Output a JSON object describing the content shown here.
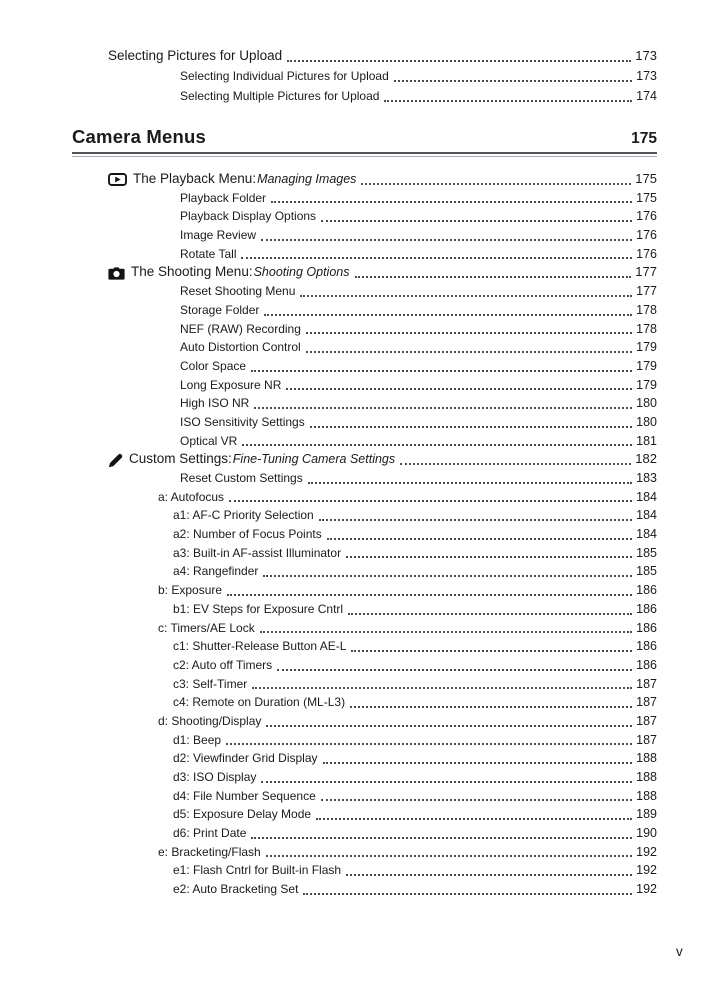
{
  "page": {
    "footer_page_label": "v"
  },
  "pre_section": {
    "entries": [
      {
        "level": "l1",
        "label": "Selecting Pictures for Upload",
        "page": "173"
      },
      {
        "level": "l2",
        "label": "Selecting Individual Pictures for Upload",
        "page": "173"
      },
      {
        "level": "l2",
        "label": "Selecting Multiple Pictures for Upload",
        "page": "174"
      }
    ]
  },
  "chapter": {
    "title": "Camera Menus",
    "page": "175"
  },
  "toc": {
    "entries": [
      {
        "level": "l1",
        "icon": "playback-icon",
        "label": "The Playback Menu: ",
        "subtitle": "Managing Images",
        "page": "175"
      },
      {
        "level": "l2",
        "label": "Playback Folder",
        "page": "175"
      },
      {
        "level": "l2",
        "label": "Playback Display Options",
        "page": "176"
      },
      {
        "level": "l2",
        "label": "Image Review",
        "page": "176"
      },
      {
        "level": "l2",
        "label": "Rotate Tall",
        "page": "176"
      },
      {
        "level": "l1",
        "icon": "camera-icon",
        "label": "The Shooting Menu: ",
        "subtitle": "Shooting Options",
        "page": "177"
      },
      {
        "level": "l2",
        "label": "Reset Shooting Menu",
        "page": "177"
      },
      {
        "level": "l2",
        "label": "Storage Folder",
        "page": "178"
      },
      {
        "level": "l2",
        "label": "NEF (RAW) Recording",
        "page": "178"
      },
      {
        "level": "l2",
        "label": "Auto Distortion Control",
        "page": "179"
      },
      {
        "level": "l2",
        "label": "Color Space",
        "page": "179"
      },
      {
        "level": "l2",
        "label": "Long Exposure NR",
        "page": "179"
      },
      {
        "level": "l2",
        "label": "High ISO NR",
        "page": "180"
      },
      {
        "level": "l2",
        "label": "ISO Sensitivity Settings",
        "page": "180"
      },
      {
        "level": "l2",
        "label": "Optical VR",
        "page": "181"
      },
      {
        "level": "l1",
        "icon": "pencil-icon",
        "label": "Custom Settings: ",
        "subtitle": "Fine-Tuning Camera Settings",
        "page": "182"
      },
      {
        "level": "l2",
        "label": "Reset Custom Settings",
        "page": "183"
      },
      {
        "level": "group",
        "label": "a: Autofocus",
        "page": "184"
      },
      {
        "level": "sub",
        "label": "a1: AF-C Priority Selection",
        "page": "184"
      },
      {
        "level": "sub",
        "label": "a2: Number of Focus Points",
        "page": "184"
      },
      {
        "level": "sub",
        "label": "a3: Built-in AF-assist Illuminator",
        "page": "185"
      },
      {
        "level": "sub",
        "label": "a4: Rangefinder",
        "page": "185"
      },
      {
        "level": "group",
        "label": "b: Exposure",
        "page": "186"
      },
      {
        "level": "sub",
        "label": "b1: EV Steps for Exposure Cntrl",
        "page": "186"
      },
      {
        "level": "group",
        "label": "c: Timers/AE Lock",
        "page": "186"
      },
      {
        "level": "sub",
        "label": "c1: Shutter-Release Button AE-L",
        "page": "186"
      },
      {
        "level": "sub",
        "label": "c2: Auto off Timers",
        "page": "186"
      },
      {
        "level": "sub",
        "label": "c3: Self-Timer",
        "page": "187"
      },
      {
        "level": "sub",
        "label": "c4: Remote on Duration (ML-L3)",
        "page": "187"
      },
      {
        "level": "group",
        "label": "d: Shooting/Display",
        "page": "187"
      },
      {
        "level": "sub",
        "label": "d1: Beep",
        "page": "187"
      },
      {
        "level": "sub",
        "label": "d2: Viewfinder Grid Display",
        "page": "188"
      },
      {
        "level": "sub",
        "label": "d3: ISO Display",
        "page": "188"
      },
      {
        "level": "sub",
        "label": "d4: File Number Sequence",
        "page": "188"
      },
      {
        "level": "sub",
        "label": "d5: Exposure Delay Mode",
        "page": "189"
      },
      {
        "level": "sub",
        "label": "d6: Print Date",
        "page": "190"
      },
      {
        "level": "group",
        "label": "e: Bracketing/Flash",
        "page": "192"
      },
      {
        "level": "sub",
        "label": "e1: Flash Cntrl for Built-in Flash",
        "page": "192"
      },
      {
        "level": "sub",
        "label": "e2: Auto Bracketing Set",
        "page": "192"
      }
    ]
  }
}
